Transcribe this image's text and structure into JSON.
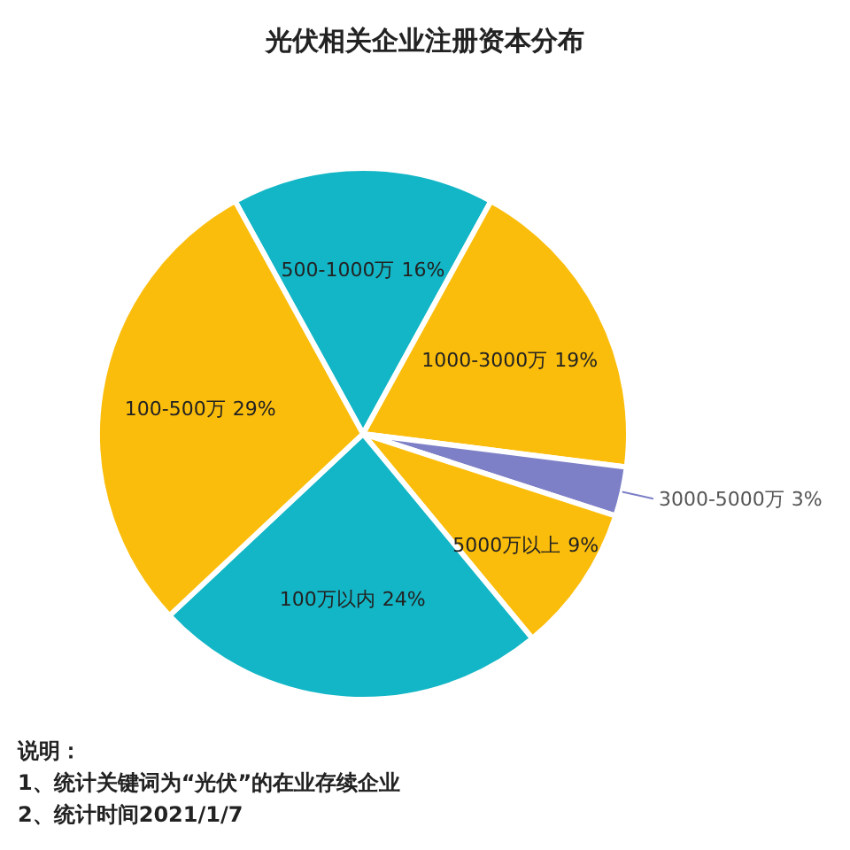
{
  "chart_data": {
    "type": "pie",
    "title": "光伏相关企业注册资本分布",
    "categories": [
      "500-1000万",
      "1000-3000万",
      "3000-5000万",
      "5000万以上",
      "100万以内",
      "100-500万"
    ],
    "values": [
      16,
      19,
      3,
      9,
      24,
      29
    ],
    "colors": [
      "#13b6c6",
      "#fbbd0b",
      "#7d80c6",
      "#fbbd0b",
      "#13b6c6",
      "#fbbd0b"
    ],
    "value_labels": [
      "16%",
      "19%",
      "3%",
      "9%",
      "24%",
      "29%"
    ],
    "annotations": [
      "说明：",
      "1、统计关键词为“光伏”的在业存续企业",
      "2、统计时间2021/1/7"
    ]
  }
}
